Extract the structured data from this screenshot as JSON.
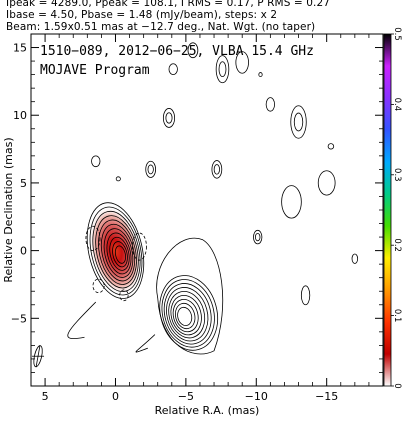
{
  "header": {
    "line1": "Ipeak = 4289.0, Ppeak = 108.1, I RMS = 0.17, P RMS = 0.27",
    "line2": "Ibase = 4.50, Pbase = 1.48 (mJy/beam), steps: x 2",
    "line3": "Beam: 1.59x0.51 mas at −12.7 deg., Nat. Wgt. (no taper)"
  },
  "chart_data": {
    "type": "contour",
    "inset_text": [
      "1510−089, 2012−06−25, VLBA 15.4 GHz",
      "MOJAVE Program"
    ],
    "xlabel": "Relative R.A. (mas)",
    "ylabel": "Relative Declination (mas)",
    "xlim": [
      6,
      -19
    ],
    "ylim": [
      -10,
      16
    ],
    "x_ticks": [
      5,
      0,
      -5,
      -10,
      -15
    ],
    "x_tick_labels": [
      "5",
      "0",
      "−5",
      "−10",
      "−15"
    ],
    "y_ticks": [
      15,
      10,
      5,
      0,
      -5
    ],
    "y_tick_labels": [
      "15",
      "10",
      "5",
      "0",
      "−5"
    ],
    "colorbar": {
      "range": [
        0,
        0.5
      ],
      "ticks": [
        0,
        0.1,
        0.2,
        0.3,
        0.4,
        0.5
      ],
      "tick_labels": [
        "0",
        "0.1",
        "0.2",
        "0.3",
        "0.4",
        "0.5"
      ],
      "colors": [
        "#ffffff",
        "#c00000",
        "#ff3300",
        "#ff9900",
        "#ffee00",
        "#44dd00",
        "#00cc88",
        "#00aaff",
        "#3355ff",
        "#8833ff",
        "#cc22ff",
        "#000000"
      ]
    },
    "core": {
      "x": 0,
      "y": 0,
      "levels": 11,
      "rx_max": 1.9,
      "ry_max": 3.6,
      "angle": -12.7
    },
    "jet_knot": {
      "x": -5.2,
      "y": -4.6,
      "levels": 9,
      "rx_max": 2.0,
      "ry_max": 2.8,
      "angle": -15
    },
    "negative_contours": [
      {
        "x": 1.6,
        "y": 0.9,
        "rx": 0.5,
        "ry": 0.9
      },
      {
        "x": -1.7,
        "y": 0.3,
        "rx": 0.5,
        "ry": 1.0
      },
      {
        "x": 1.2,
        "y": -2.6,
        "rx": 0.4,
        "ry": 0.5
      },
      {
        "x": -0.6,
        "y": -3.3,
        "rx": 0.3,
        "ry": 0.4
      }
    ],
    "isolated_contours": [
      {
        "x": -5.5,
        "y": 14.8,
        "rx": 0.35,
        "ry": 0.55,
        "rings": 1
      },
      {
        "x": -7.6,
        "y": 13.4,
        "rx": 0.45,
        "ry": 1.0,
        "rings": 2
      },
      {
        "x": -4.1,
        "y": 13.4,
        "rx": 0.3,
        "ry": 0.4,
        "rings": 1
      },
      {
        "x": -9.0,
        "y": 13.9,
        "rx": 0.45,
        "ry": 0.8,
        "rings": 1
      },
      {
        "x": -3.8,
        "y": 9.8,
        "rx": 0.4,
        "ry": 0.7,
        "rings": 2
      },
      {
        "x": -2.5,
        "y": 6.0,
        "rx": 0.35,
        "ry": 0.6,
        "rings": 2
      },
      {
        "x": -7.2,
        "y": 6.0,
        "rx": 0.35,
        "ry": 0.65,
        "rings": 2
      },
      {
        "x": -13.0,
        "y": 9.5,
        "rx": 0.55,
        "ry": 1.2,
        "rings": 2
      },
      {
        "x": -11.0,
        "y": 10.8,
        "rx": 0.3,
        "ry": 0.5,
        "rings": 1
      },
      {
        "x": -10.3,
        "y": 13.0,
        "rx": 0.12,
        "ry": 0.15,
        "rings": 1
      },
      {
        "x": -15.0,
        "y": 5.0,
        "rx": 0.6,
        "ry": 0.9,
        "rings": 1
      },
      {
        "x": -12.5,
        "y": 3.6,
        "rx": 0.7,
        "ry": 1.2,
        "rings": 1
      },
      {
        "x": -15.3,
        "y": 7.7,
        "rx": 0.2,
        "ry": 0.2,
        "rings": 1
      },
      {
        "x": -10.1,
        "y": 1.0,
        "rx": 0.3,
        "ry": 0.5,
        "rings": 2
      },
      {
        "x": 1.4,
        "y": 6.6,
        "rx": 0.3,
        "ry": 0.4,
        "rings": 1
      },
      {
        "x": -0.2,
        "y": 5.3,
        "rx": 0.15,
        "ry": 0.15,
        "rings": 1
      },
      {
        "x": -13.5,
        "y": -3.3,
        "rx": 0.3,
        "ry": 0.7,
        "rings": 1
      },
      {
        "x": -17.0,
        "y": -0.6,
        "rx": 0.2,
        "ry": 0.35,
        "rings": 1
      }
    ],
    "beam": {
      "x": 5.5,
      "y": -7.8,
      "major": 1.59,
      "minor": 0.51,
      "pa": -12.7
    }
  }
}
